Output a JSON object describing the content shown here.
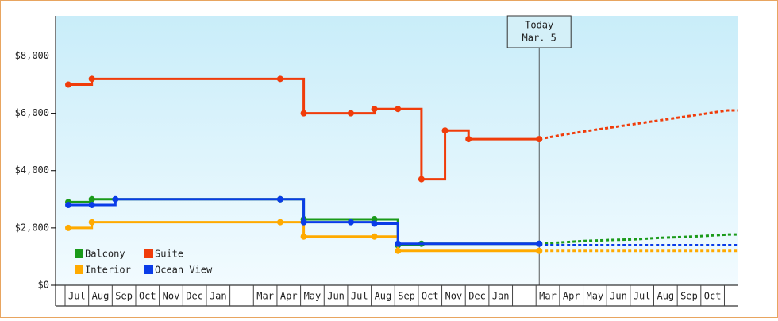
{
  "chart_data": {
    "type": "step-line",
    "annotation": {
      "lines": [
        "Today",
        "Mar. 5"
      ]
    },
    "categories": [
      "Jul",
      "Aug",
      "Sep",
      "Oct",
      "Nov",
      "Dec",
      "Jan",
      null,
      "Mar",
      "Apr",
      "May",
      "Jun",
      "Jul",
      "Aug",
      "Sep",
      "Oct",
      "Nov",
      "Dec",
      "Jan",
      null,
      "Mar",
      "Apr",
      "May",
      "Jun",
      "Jul",
      "Aug",
      "Sep",
      "Oct",
      null
    ],
    "ylim": [
      0,
      9400
    ],
    "yticks": [
      {
        "value": 0,
        "label": "$0"
      },
      {
        "value": 2000,
        "label": "$2,000"
      },
      {
        "value": 4000,
        "label": "$4,000"
      },
      {
        "value": 6000,
        "label": "$6,000"
      },
      {
        "value": 8000,
        "label": "$8,000"
      }
    ],
    "series": [
      {
        "name": "Balcony",
        "color": "#1a9a1a",
        "values": [
          2900,
          3000,
          3000,
          3000,
          3000,
          3000,
          3000,
          3000,
          3000,
          3000,
          2300,
          2300,
          2300,
          2300,
          1400,
          1450,
          1450,
          1450,
          1450,
          1450,
          1450,
          null,
          null,
          null,
          null,
          null,
          null,
          null,
          null
        ],
        "projected": [
          null,
          null,
          null,
          null,
          null,
          null,
          null,
          null,
          null,
          null,
          null,
          null,
          null,
          null,
          null,
          null,
          null,
          null,
          null,
          null,
          1450,
          1500,
          1550,
          1580,
          1600,
          1650,
          1680,
          1720,
          1770
        ]
      },
      {
        "name": "Suite",
        "color": "#f03c0a",
        "values": [
          7000,
          7200,
          7200,
          7200,
          7200,
          7200,
          7200,
          7200,
          7200,
          7200,
          6000,
          6000,
          6000,
          6150,
          6150,
          3700,
          5400,
          5100,
          5100,
          5100,
          5100,
          null,
          null,
          null,
          null,
          null,
          null,
          null,
          null
        ],
        "projected": [
          null,
          null,
          null,
          null,
          null,
          null,
          null,
          null,
          null,
          null,
          null,
          null,
          null,
          null,
          null,
          null,
          null,
          null,
          null,
          null,
          5100,
          5250,
          5380,
          5500,
          5620,
          5740,
          5860,
          5980,
          6100
        ]
      },
      {
        "name": "Interior",
        "color": "#ffaa00",
        "values": [
          2000,
          2200,
          2200,
          2200,
          2200,
          2200,
          2200,
          2200,
          2200,
          2200,
          1700,
          1700,
          1700,
          1700,
          1200,
          1200,
          1200,
          1200,
          1200,
          1200,
          1200,
          null,
          null,
          null,
          null,
          null,
          null,
          null,
          null
        ],
        "projected": [
          null,
          null,
          null,
          null,
          null,
          null,
          null,
          null,
          null,
          null,
          null,
          null,
          null,
          null,
          null,
          null,
          null,
          null,
          null,
          null,
          1200,
          1200,
          1200,
          1200,
          1200,
          1200,
          1200,
          1200,
          1200
        ]
      },
      {
        "name": "Ocean View",
        "color": "#0a3ce8",
        "values": [
          2800,
          2800,
          3000,
          3000,
          3000,
          3000,
          3000,
          3000,
          3000,
          3000,
          2200,
          2200,
          2200,
          2150,
          1450,
          1450,
          1450,
          1450,
          1450,
          1450,
          1450,
          null,
          null,
          null,
          null,
          null,
          null,
          null,
          null
        ],
        "projected": [
          null,
          null,
          null,
          null,
          null,
          null,
          null,
          null,
          null,
          null,
          null,
          null,
          null,
          null,
          null,
          null,
          null,
          null,
          null,
          null,
          1400,
          1400,
          1400,
          1400,
          1400,
          1400,
          1400,
          1400,
          1400
        ]
      }
    ]
  }
}
